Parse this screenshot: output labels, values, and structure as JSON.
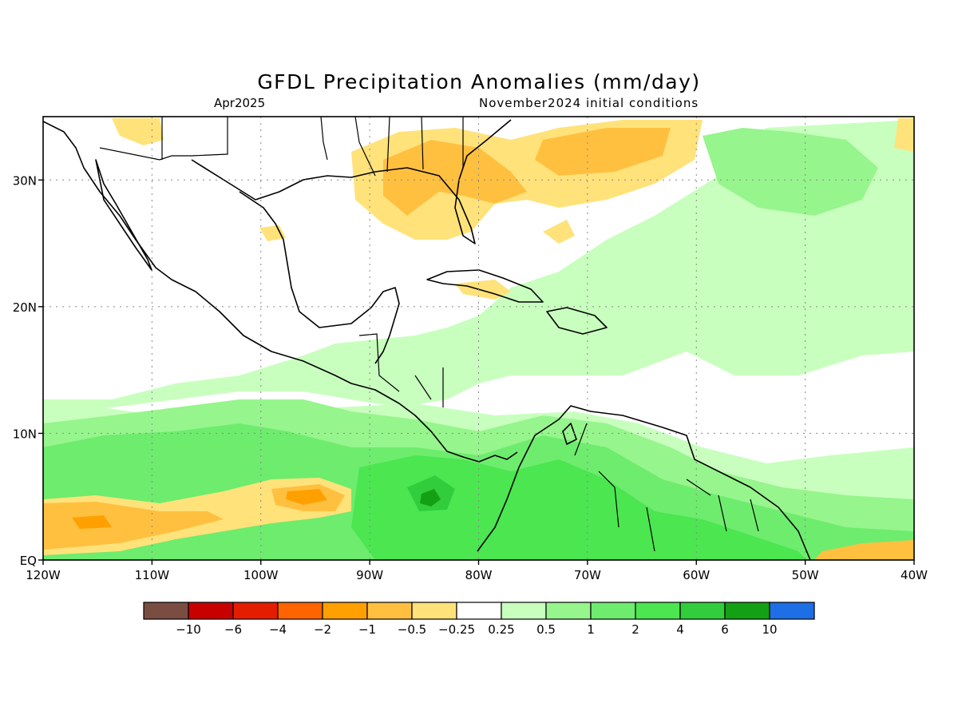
{
  "title": "GFDL Precipitation Anomalies (mm/day)",
  "valid_month": "Apr2025",
  "init_conditions": "November2024 initial conditions",
  "map": {
    "lon_range": [
      -120,
      -40
    ],
    "lat_range": [
      0,
      35
    ],
    "lon_ticks": [
      {
        "value": -120,
        "label": "120W"
      },
      {
        "value": -110,
        "label": "110W"
      },
      {
        "value": -100,
        "label": "100W"
      },
      {
        "value": -90,
        "label": "90W"
      },
      {
        "value": -80,
        "label": "80W"
      },
      {
        "value": -70,
        "label": "70W"
      },
      {
        "value": -60,
        "label": "60W"
      },
      {
        "value": -50,
        "label": "50W"
      },
      {
        "value": -40,
        "label": "40W"
      }
    ],
    "lat_ticks": [
      {
        "value": 0,
        "label": "EQ"
      },
      {
        "value": 10,
        "label": "10N"
      },
      {
        "value": 20,
        "label": "20N"
      },
      {
        "value": 30,
        "label": "30N"
      }
    ],
    "grid": true
  },
  "colorbar": {
    "colors": [
      "#7a4d43",
      "#c80000",
      "#e41c00",
      "#ff6400",
      "#ffa000",
      "#ffc040",
      "#ffe27a",
      "#ffffff",
      "#c8ffbe",
      "#96f58c",
      "#6eec6e",
      "#4be650",
      "#32cd3c",
      "#14a014",
      "#1e6ee6"
    ],
    "labels": [
      "−10",
      "−6",
      "−4",
      "−2",
      "−1",
      "−0.5",
      "−0.25",
      "0.25",
      "0.5",
      "1",
      "2",
      "4",
      "6",
      "10"
    ]
  }
}
